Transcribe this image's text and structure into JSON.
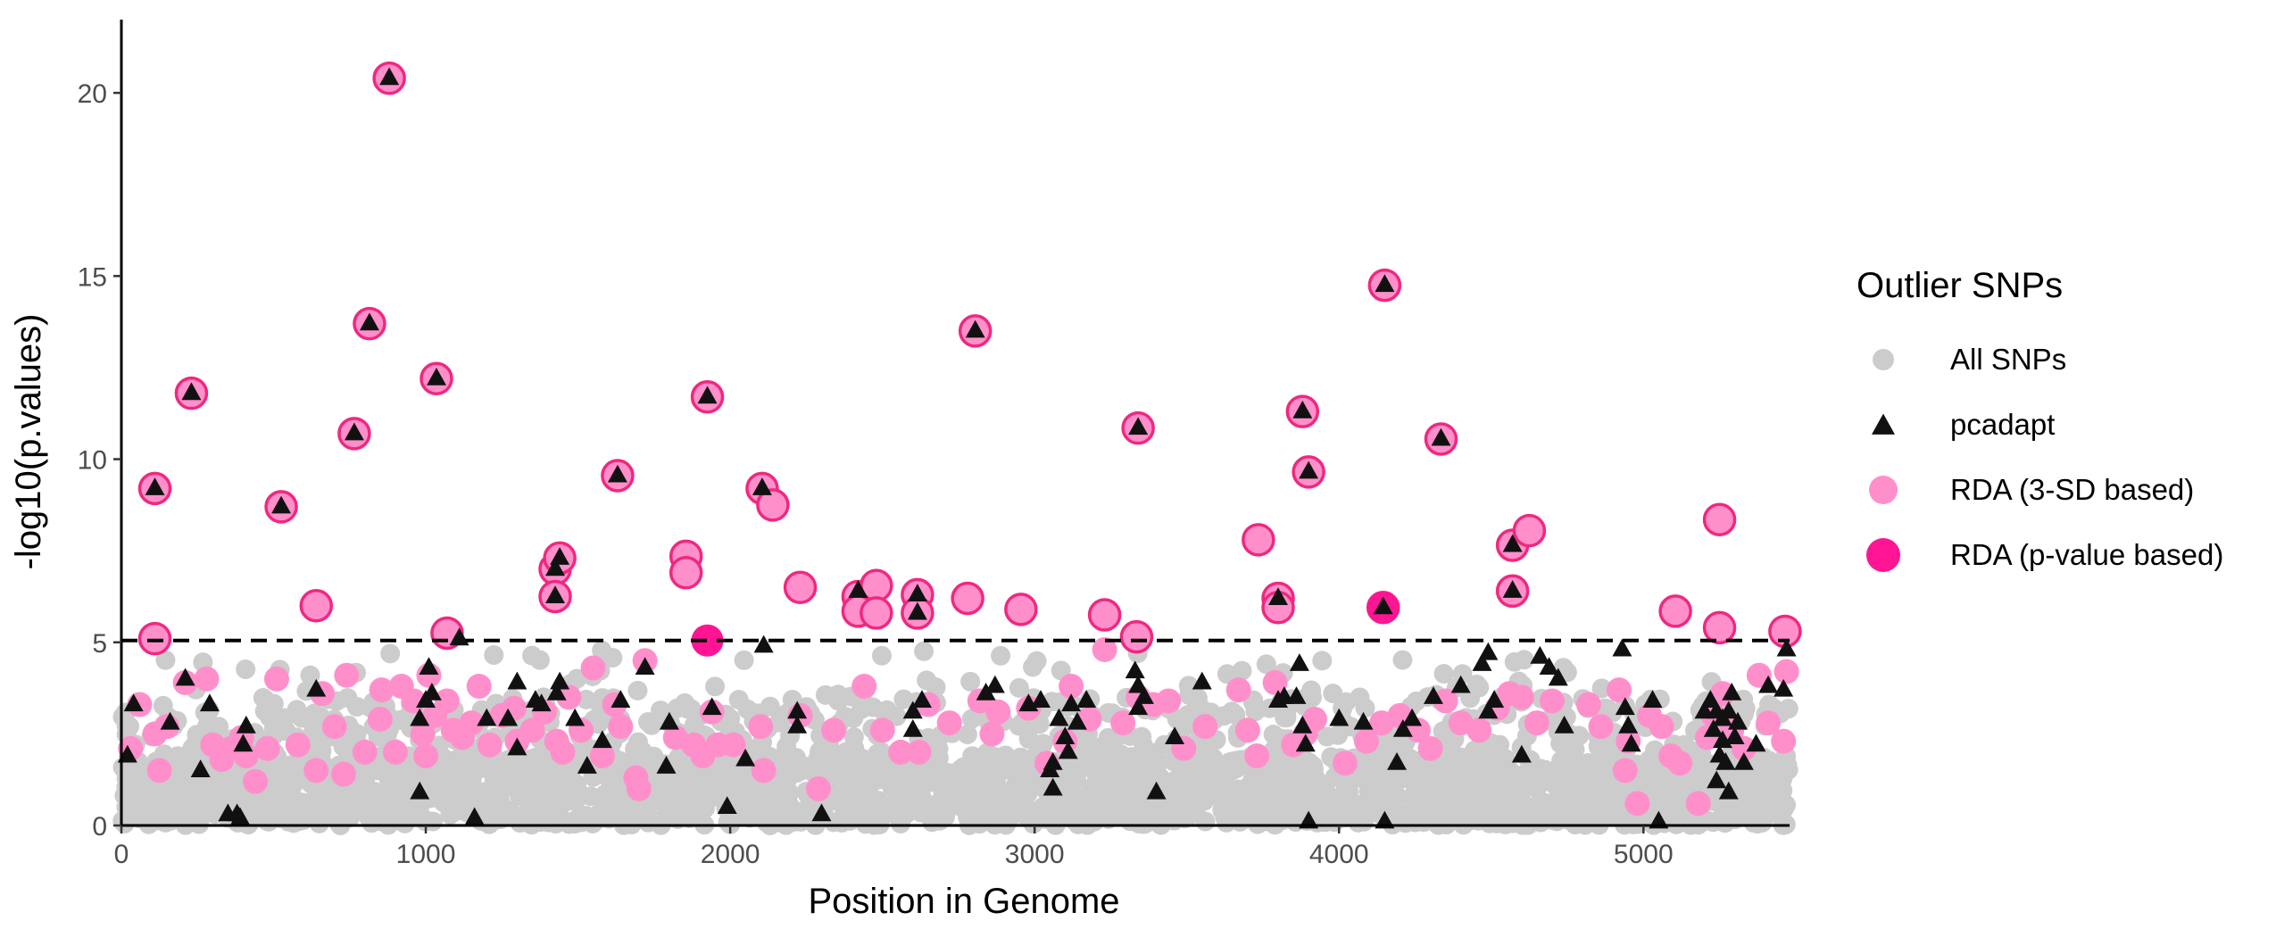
{
  "chart_data": {
    "type": "scatter",
    "xlabel": "Position in Genome",
    "ylabel": "-log10(p.values)",
    "xlim": [
      0,
      5480
    ],
    "ylim": [
      0,
      22
    ],
    "x_ticks": [
      0,
      1000,
      2000,
      3000,
      4000,
      5000
    ],
    "y_ticks": [
      0,
      5,
      10,
      15,
      20
    ],
    "threshold": 5.05,
    "grid": false,
    "legend": {
      "title": "Outlier SNPs",
      "position": "right",
      "items": [
        {
          "label": "All SNPs",
          "key": "all",
          "shape": "circle",
          "color": "#cccccc"
        },
        {
          "label": "pcadapt",
          "key": "pcadapt",
          "shape": "triangle",
          "color": "#111111"
        },
        {
          "label": "RDA (3-SD based)",
          "key": "rda_sd",
          "shape": "circle",
          "color": "#ff8fcb"
        },
        {
          "label": "RDA (p-value based)",
          "key": "rda_p",
          "shape": "circle",
          "color": "#ff1493"
        }
      ]
    },
    "colors": {
      "all": "#cccccc",
      "pcadapt": "#111111",
      "rda_sd": "#ff8fcb",
      "rda_sd_ring": "#f0287f",
      "rda_p": "#ff1493"
    },
    "highlighted": [
      {
        "x": 110,
        "y": 9.2,
        "triangle": true
      },
      {
        "x": 230,
        "y": 11.8,
        "triangle": true
      },
      {
        "x": 525,
        "y": 8.7,
        "triangle": true
      },
      {
        "x": 765,
        "y": 10.7,
        "triangle": true
      },
      {
        "x": 815,
        "y": 13.7,
        "triangle": true
      },
      {
        "x": 880,
        "y": 20.4,
        "triangle": true
      },
      {
        "x": 1035,
        "y": 12.2,
        "triangle": true
      },
      {
        "x": 1425,
        "y": 7.0,
        "triangle": true
      },
      {
        "x": 1440,
        "y": 7.3,
        "triangle": true
      },
      {
        "x": 1425,
        "y": 6.25,
        "triangle": true
      },
      {
        "x": 1630,
        "y": 9.55,
        "triangle": true
      },
      {
        "x": 1925,
        "y": 11.7,
        "triangle": true
      },
      {
        "x": 2105,
        "y": 9.2,
        "triangle": true
      },
      {
        "x": 2615,
        "y": 6.3,
        "triangle": true
      },
      {
        "x": 2615,
        "y": 5.8,
        "triangle": true
      },
      {
        "x": 2805,
        "y": 13.5,
        "triangle": true
      },
      {
        "x": 3340,
        "y": 10.85,
        "triangle": true
      },
      {
        "x": 3800,
        "y": 6.2,
        "triangle": true
      },
      {
        "x": 3880,
        "y": 11.3,
        "triangle": true
      },
      {
        "x": 3900,
        "y": 9.65,
        "triangle": true
      },
      {
        "x": 4150,
        "y": 14.75,
        "triangle": true
      },
      {
        "x": 4145,
        "y": 5.95,
        "triangle": true
      },
      {
        "x": 4335,
        "y": 10.55,
        "triangle": true
      },
      {
        "x": 4570,
        "y": 7.65,
        "triangle": true
      },
      {
        "x": 4570,
        "y": 6.4,
        "triangle": true
      },
      {
        "x": 110,
        "y": 5.1,
        "triangle": false
      },
      {
        "x": 640,
        "y": 6.0,
        "triangle": false
      },
      {
        "x": 1070,
        "y": 5.25,
        "triangle": false
      },
      {
        "x": 1855,
        "y": 7.35,
        "triangle": false
      },
      {
        "x": 1855,
        "y": 6.9,
        "triangle": false
      },
      {
        "x": 2140,
        "y": 8.75,
        "triangle": false
      },
      {
        "x": 2230,
        "y": 6.5,
        "triangle": false
      },
      {
        "x": 2420,
        "y": 6.25,
        "triangle": false
      },
      {
        "x": 2420,
        "y": 5.85,
        "triangle": false
      },
      {
        "x": 2480,
        "y": 6.55,
        "triangle": false
      },
      {
        "x": 2480,
        "y": 5.8,
        "triangle": false
      },
      {
        "x": 2780,
        "y": 6.2,
        "triangle": false
      },
      {
        "x": 2955,
        "y": 5.9,
        "triangle": false
      },
      {
        "x": 3230,
        "y": 5.75,
        "triangle": false
      },
      {
        "x": 3335,
        "y": 5.15,
        "triangle": false
      },
      {
        "x": 3735,
        "y": 7.8,
        "triangle": false
      },
      {
        "x": 3800,
        "y": 5.95,
        "triangle": false
      },
      {
        "x": 4625,
        "y": 8.05,
        "triangle": false
      },
      {
        "x": 5105,
        "y": 5.85,
        "triangle": false
      },
      {
        "x": 5250,
        "y": 8.35,
        "triangle": false
      },
      {
        "x": 5250,
        "y": 5.4,
        "triangle": false
      },
      {
        "x": 5465,
        "y": 5.3,
        "triangle": false
      }
    ],
    "p_value_based": [
      {
        "x": 1925,
        "y": 5.05
      },
      {
        "x": 4145,
        "y": 5.95
      }
    ],
    "pink_low": [
      [
        30,
        2.1
      ],
      [
        60,
        3.3
      ],
      [
        110,
        2.5
      ],
      [
        125,
        1.5
      ],
      [
        150,
        2.7
      ],
      [
        210,
        3.9
      ],
      [
        280,
        4.0
      ],
      [
        300,
        2.2
      ],
      [
        330,
        1.8
      ],
      [
        360,
        2.1
      ],
      [
        395,
        2.4
      ],
      [
        410,
        1.9
      ],
      [
        440,
        1.2
      ],
      [
        480,
        2.1
      ],
      [
        510,
        4.0
      ],
      [
        580,
        2.2
      ],
      [
        640,
        1.5
      ],
      [
        660,
        3.6
      ],
      [
        700,
        2.7
      ],
      [
        730,
        1.4
      ],
      [
        740,
        4.1
      ],
      [
        800,
        2.0
      ],
      [
        850,
        2.9
      ],
      [
        855,
        3.7
      ],
      [
        900,
        2.0
      ],
      [
        920,
        3.8
      ],
      [
        960,
        3.4
      ],
      [
        990,
        2.5
      ],
      [
        1000,
        1.9
      ],
      [
        1010,
        4.1
      ],
      [
        1030,
        3.0
      ],
      [
        1070,
        3.4
      ],
      [
        1090,
        2.6
      ],
      [
        1120,
        2.4
      ],
      [
        1150,
        2.8
      ],
      [
        1175,
        3.8
      ],
      [
        1210,
        2.2
      ],
      [
        1250,
        3.0
      ],
      [
        1290,
        3.2
      ],
      [
        1300,
        2.3
      ],
      [
        1350,
        2.6
      ],
      [
        1390,
        3.1
      ],
      [
        1430,
        2.3
      ],
      [
        1450,
        2.0
      ],
      [
        1470,
        3.5
      ],
      [
        1510,
        2.6
      ],
      [
        1550,
        4.3
      ],
      [
        1580,
        1.9
      ],
      [
        1620,
        3.3
      ],
      [
        1640,
        2.7
      ],
      [
        1690,
        1.3
      ],
      [
        1700,
        1.0
      ],
      [
        1720,
        4.5
      ],
      [
        1820,
        2.4
      ],
      [
        1880,
        2.2
      ],
      [
        1910,
        1.9
      ],
      [
        1940,
        3.1
      ],
      [
        1960,
        2.2
      ],
      [
        2010,
        2.2
      ],
      [
        2100,
        2.7
      ],
      [
        2110,
        1.5
      ],
      [
        2230,
        3.0
      ],
      [
        2290,
        1.0
      ],
      [
        2340,
        2.6
      ],
      [
        2440,
        3.8
      ],
      [
        2500,
        2.6
      ],
      [
        2560,
        2.0
      ],
      [
        2620,
        2.0
      ],
      [
        2650,
        3.3
      ],
      [
        2720,
        2.8
      ],
      [
        2820,
        3.4
      ],
      [
        2860,
        2.5
      ],
      [
        2880,
        3.1
      ],
      [
        2980,
        3.2
      ],
      [
        3040,
        1.7
      ],
      [
        3100,
        2.3
      ],
      [
        3120,
        3.8
      ],
      [
        3180,
        2.9
      ],
      [
        3230,
        4.8
      ],
      [
        3290,
        2.8
      ],
      [
        3340,
        3.5
      ],
      [
        3390,
        3.3
      ],
      [
        3440,
        3.4
      ],
      [
        3490,
        2.1
      ],
      [
        3560,
        2.7
      ],
      [
        3670,
        3.7
      ],
      [
        3700,
        2.6
      ],
      [
        3730,
        1.9
      ],
      [
        3790,
        3.9
      ],
      [
        3850,
        2.2
      ],
      [
        3890,
        2.5
      ],
      [
        3920,
        2.9
      ],
      [
        4020,
        1.7
      ],
      [
        4090,
        2.3
      ],
      [
        4140,
        2.8
      ],
      [
        4200,
        3.0
      ],
      [
        4260,
        2.6
      ],
      [
        4300,
        2.1
      ],
      [
        4350,
        3.4
      ],
      [
        4400,
        2.8
      ],
      [
        4460,
        2.6
      ],
      [
        4520,
        3.2
      ],
      [
        4560,
        3.6
      ],
      [
        4600,
        3.5
      ],
      [
        4650,
        2.8
      ],
      [
        4700,
        3.4
      ],
      [
        4820,
        3.3
      ],
      [
        4860,
        2.7
      ],
      [
        4920,
        3.7
      ],
      [
        4940,
        1.5
      ],
      [
        4950,
        2.3
      ],
      [
        4980,
        0.6
      ],
      [
        5020,
        3.0
      ],
      [
        5060,
        2.7
      ],
      [
        5090,
        1.9
      ],
      [
        5120,
        1.7
      ],
      [
        5180,
        0.6
      ],
      [
        5210,
        2.4
      ],
      [
        5230,
        3.0
      ],
      [
        5260,
        3.6
      ],
      [
        5290,
        2.6
      ],
      [
        5330,
        2.1
      ],
      [
        5380,
        4.1
      ],
      [
        5410,
        2.8
      ],
      [
        5460,
        2.3
      ],
      [
        5470,
        4.2
      ]
    ],
    "triangles_low": [
      [
        20,
        1.9
      ],
      [
        40,
        3.3
      ],
      [
        160,
        2.8
      ],
      [
        210,
        4.0
      ],
      [
        260,
        1.5
      ],
      [
        290,
        3.3
      ],
      [
        350,
        0.3
      ],
      [
        380,
        0.3
      ],
      [
        390,
        0.2
      ],
      [
        400,
        2.2
      ],
      [
        410,
        2.7
      ],
      [
        640,
        3.7
      ],
      [
        980,
        0.9
      ],
      [
        980,
        2.9
      ],
      [
        1000,
        3.4
      ],
      [
        1010,
        4.3
      ],
      [
        1020,
        3.6
      ],
      [
        1110,
        5.1
      ],
      [
        1160,
        0.2
      ],
      [
        1200,
        2.9
      ],
      [
        1270,
        2.9
      ],
      [
        1300,
        2.1
      ],
      [
        1300,
        3.9
      ],
      [
        1360,
        3.4
      ],
      [
        1380,
        3.3
      ],
      [
        1430,
        3.6
      ],
      [
        1440,
        3.9
      ],
      [
        1490,
        2.9
      ],
      [
        1530,
        1.6
      ],
      [
        1580,
        2.3
      ],
      [
        1640,
        3.4
      ],
      [
        1720,
        4.3
      ],
      [
        1790,
        1.6
      ],
      [
        1800,
        2.8
      ],
      [
        1940,
        3.2
      ],
      [
        1990,
        0.5
      ],
      [
        2050,
        1.8
      ],
      [
        2110,
        4.9
      ],
      [
        2220,
        2.7
      ],
      [
        2220,
        3.1
      ],
      [
        2300,
        0.3
      ],
      [
        2420,
        6.4
      ],
      [
        2600,
        3.1
      ],
      [
        2600,
        2.6
      ],
      [
        2630,
        3.4
      ],
      [
        2840,
        3.6
      ],
      [
        2870,
        3.8
      ],
      [
        2980,
        3.3
      ],
      [
        3020,
        3.4
      ],
      [
        3050,
        1.5
      ],
      [
        3060,
        1.0
      ],
      [
        3060,
        1.7
      ],
      [
        3080,
        2.9
      ],
      [
        3100,
        2.4
      ],
      [
        3110,
        2.0
      ],
      [
        3120,
        3.3
      ],
      [
        3140,
        2.8
      ],
      [
        3170,
        3.4
      ],
      [
        3330,
        4.2
      ],
      [
        3340,
        3.8
      ],
      [
        3340,
        3.2
      ],
      [
        3360,
        3.5
      ],
      [
        3400,
        0.9
      ],
      [
        3460,
        2.4
      ],
      [
        3550,
        3.9
      ],
      [
        3800,
        3.4
      ],
      [
        3820,
        3.5
      ],
      [
        3860,
        3.5
      ],
      [
        3870,
        4.4
      ],
      [
        3880,
        2.7
      ],
      [
        3890,
        2.2
      ],
      [
        3900,
        0.1
      ],
      [
        4000,
        2.9
      ],
      [
        4080,
        2.8
      ],
      [
        4150,
        0.1
      ],
      [
        4190,
        1.7
      ],
      [
        4210,
        2.6
      ],
      [
        4240,
        2.9
      ],
      [
        4310,
        3.5
      ],
      [
        4400,
        3.8
      ],
      [
        4470,
        4.4
      ],
      [
        4490,
        4.7
      ],
      [
        4490,
        3.1
      ],
      [
        4510,
        3.4
      ],
      [
        4600,
        1.9
      ],
      [
        4660,
        4.6
      ],
      [
        4690,
        4.3
      ],
      [
        4720,
        4.0
      ],
      [
        4740,
        2.7
      ],
      [
        4930,
        4.8
      ],
      [
        4940,
        3.2
      ],
      [
        4950,
        2.7
      ],
      [
        4960,
        2.2
      ],
      [
        5030,
        3.4
      ],
      [
        5050,
        0.1
      ],
      [
        5200,
        3.1
      ],
      [
        5220,
        3.4
      ],
      [
        5230,
        2.6
      ],
      [
        5240,
        1.2
      ],
      [
        5240,
        3.1
      ],
      [
        5250,
        1.9
      ],
      [
        5260,
        2.3
      ],
      [
        5260,
        2.9
      ],
      [
        5270,
        1.7
      ],
      [
        5280,
        0.9
      ],
      [
        5280,
        3.1
      ],
      [
        5290,
        3.6
      ],
      [
        5300,
        2.4
      ],
      [
        5310,
        2.8
      ],
      [
        5330,
        1.7
      ],
      [
        5370,
        2.2
      ],
      [
        5410,
        3.8
      ],
      [
        5460,
        3.7
      ],
      [
        5470,
        4.8
      ]
    ]
  }
}
